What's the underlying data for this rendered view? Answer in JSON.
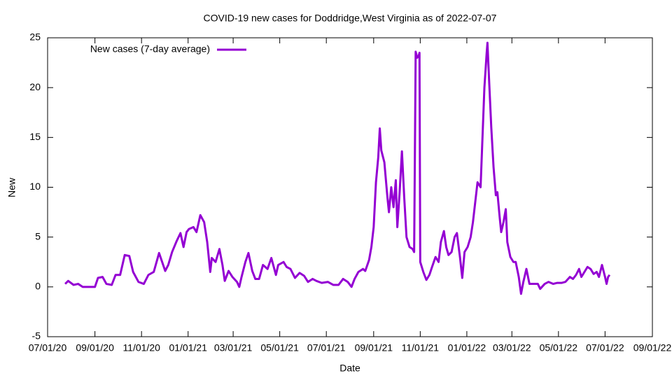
{
  "chart_data": {
    "type": "line",
    "title": "COVID-19 new cases for Doddridge,West Virginia as of 2022-07-07",
    "x_label": "Date",
    "y_label": "New",
    "legend_position": "top-left",
    "xlim": [
      "2020-07-01",
      "2022-09-01"
    ],
    "xticks": [
      {
        "value": "2020-07-01",
        "label": "07/01/20"
      },
      {
        "value": "2020-09-01",
        "label": "09/01/20"
      },
      {
        "value": "2020-11-01",
        "label": "11/01/20"
      },
      {
        "value": "2021-01-01",
        "label": "01/01/21"
      },
      {
        "value": "2021-03-01",
        "label": "03/01/21"
      },
      {
        "value": "2021-05-01",
        "label": "05/01/21"
      },
      {
        "value": "2021-07-01",
        "label": "07/01/21"
      },
      {
        "value": "2021-09-01",
        "label": "09/01/21"
      },
      {
        "value": "2021-11-01",
        "label": "11/01/21"
      },
      {
        "value": "2022-01-01",
        "label": "01/01/22"
      },
      {
        "value": "2022-03-01",
        "label": "03/01/22"
      },
      {
        "value": "2022-05-01",
        "label": "05/01/22"
      },
      {
        "value": "2022-07-01",
        "label": "07/01/22"
      },
      {
        "value": "2022-09-01",
        "label": "09/01/22"
      }
    ],
    "ylim": [
      -5,
      25
    ],
    "yticks": [
      -5,
      0,
      5,
      10,
      15,
      20,
      25
    ],
    "x": [
      "2020-07-24",
      "2020-07-28",
      "2020-08-04",
      "2020-08-10",
      "2020-08-16",
      "2020-09-01",
      "2020-09-05",
      "2020-09-11",
      "2020-09-16",
      "2020-09-23",
      "2020-09-28",
      "2020-10-04",
      "2020-10-10",
      "2020-10-16",
      "2020-10-21",
      "2020-10-28",
      "2020-11-04",
      "2020-11-10",
      "2020-11-17",
      "2020-11-24",
      "2020-11-28",
      "2020-12-02",
      "2020-12-06",
      "2020-12-11",
      "2020-12-17",
      "2020-12-22",
      "2020-12-26",
      "2020-12-30",
      "2021-01-02",
      "2021-01-08",
      "2021-01-12",
      "2021-01-17",
      "2021-01-22",
      "2021-01-26",
      "2021-01-30",
      "2021-02-01",
      "2021-02-06",
      "2021-02-11",
      "2021-02-15",
      "2021-02-18",
      "2021-02-23",
      "2021-02-28",
      "2021-03-06",
      "2021-03-09",
      "2021-03-12",
      "2021-03-17",
      "2021-03-21",
      "2021-03-26",
      "2021-03-30",
      "2021-04-04",
      "2021-04-09",
      "2021-04-15",
      "2021-04-20",
      "2021-04-26",
      "2021-04-29",
      "2021-05-06",
      "2021-05-10",
      "2021-05-15",
      "2021-05-21",
      "2021-05-27",
      "2021-06-02",
      "2021-06-07",
      "2021-06-13",
      "2021-06-18",
      "2021-06-25",
      "2021-07-03",
      "2021-07-10",
      "2021-07-17",
      "2021-07-23",
      "2021-07-29",
      "2021-08-03",
      "2021-08-07",
      "2021-08-12",
      "2021-08-18",
      "2021-08-21",
      "2021-08-26",
      "2021-08-29",
      "2021-09-01",
      "2021-09-04",
      "2021-09-07",
      "2021-09-09",
      "2021-09-11",
      "2021-09-15",
      "2021-09-19",
      "2021-09-21",
      "2021-09-24",
      "2021-09-27",
      "2021-09-30",
      "2021-10-02",
      "2021-10-05",
      "2021-10-08",
      "2021-10-11",
      "2021-10-14",
      "2021-10-18",
      "2021-10-22",
      "2021-10-24",
      "2021-10-26",
      "2021-10-28",
      "2021-10-30",
      "2021-10-31",
      "2021-11-01",
      "2021-11-05",
      "2021-11-09",
      "2021-11-13",
      "2021-11-16",
      "2021-11-21",
      "2021-11-25",
      "2021-11-28",
      "2021-12-02",
      "2021-12-05",
      "2021-12-08",
      "2021-12-12",
      "2021-12-16",
      "2021-12-19",
      "2021-12-23",
      "2021-12-26",
      "2021-12-29",
      "2022-01-02",
      "2022-01-06",
      "2022-01-09",
      "2022-01-12",
      "2022-01-15",
      "2022-01-19",
      "2022-01-21",
      "2022-01-24",
      "2022-01-27",
      "2022-01-28",
      "2022-01-30",
      "2022-02-02",
      "2022-02-05",
      "2022-02-08",
      "2022-02-10",
      "2022-02-13",
      "2022-02-15",
      "2022-02-18",
      "2022-02-21",
      "2022-02-23",
      "2022-02-27",
      "2022-03-03",
      "2022-03-06",
      "2022-03-10",
      "2022-03-13",
      "2022-03-16",
      "2022-03-20",
      "2022-03-24",
      "2022-03-29",
      "2022-04-04",
      "2022-04-07",
      "2022-04-13",
      "2022-04-18",
      "2022-04-24",
      "2022-04-29",
      "2022-05-05",
      "2022-05-10",
      "2022-05-16",
      "2022-05-20",
      "2022-05-24",
      "2022-05-28",
      "2022-05-31",
      "2022-06-04",
      "2022-06-08",
      "2022-06-12",
      "2022-06-16",
      "2022-06-20",
      "2022-06-23",
      "2022-06-27",
      "2022-07-01",
      "2022-07-03",
      "2022-07-05",
      "2022-07-07"
    ],
    "series": [
      {
        "name": "New cases (7-day average)",
        "color": "#9400d3",
        "values": [
          0.3,
          0.6,
          0.2,
          0.3,
          0,
          0,
          0.9,
          1.0,
          0.3,
          0.2,
          1.2,
          1.2,
          3.2,
          3.1,
          1.5,
          0.5,
          0.3,
          1.2,
          1.5,
          3.4,
          2.5,
          1.6,
          2.2,
          3.5,
          4.6,
          5.4,
          4.0,
          5.5,
          5.8,
          6.0,
          5.5,
          7.2,
          6.5,
          4.5,
          1.5,
          2.9,
          2.5,
          3.8,
          2.2,
          0.6,
          1.6,
          1.0,
          0.5,
          0,
          1.0,
          2.5,
          3.4,
          1.6,
          0.8,
          0.8,
          2.2,
          1.8,
          2.9,
          1.2,
          2.2,
          2.5,
          2.0,
          1.8,
          0.9,
          1.4,
          1.1,
          0.5,
          0.8,
          0.6,
          0.4,
          0.5,
          0.2,
          0.2,
          0.8,
          0.5,
          0,
          0.8,
          1.5,
          1.8,
          1.6,
          2.7,
          4.0,
          6.0,
          10.5,
          13,
          15.9,
          13.7,
          12.5,
          9.0,
          7.5,
          10.0,
          8.0,
          10.7,
          6.0,
          9.5,
          13.6,
          9.0,
          5.0,
          4.0,
          3.8,
          3.5,
          23.6,
          23.0,
          23.2,
          23.5,
          2.5,
          1.5,
          0.7,
          1.2,
          1.9,
          3.0,
          2.5,
          4.5,
          5.6,
          4.0,
          3.2,
          3.5,
          5.0,
          5.4,
          3.0,
          0.9,
          3.5,
          4.0,
          5.0,
          6.5,
          8.5,
          10.5,
          10.0,
          14,
          20,
          23.5,
          24.5,
          21,
          16,
          12,
          9.2,
          9.5,
          7,
          5.5,
          6.5,
          7.8,
          4.5,
          3.0,
          2.5,
          2.5,
          1.0,
          -0.7,
          0.5,
          1.8,
          0.3,
          0.3,
          0.3,
          -0.2,
          0.3,
          0.5,
          0.3,
          0.4,
          0.4,
          0.5,
          1.0,
          0.8,
          1.2,
          1.8,
          1.0,
          1.5,
          2.0,
          1.8,
          1.3,
          1.5,
          1.0,
          2.2,
          1.0,
          0.3,
          1.0,
          1.2
        ]
      }
    ]
  }
}
